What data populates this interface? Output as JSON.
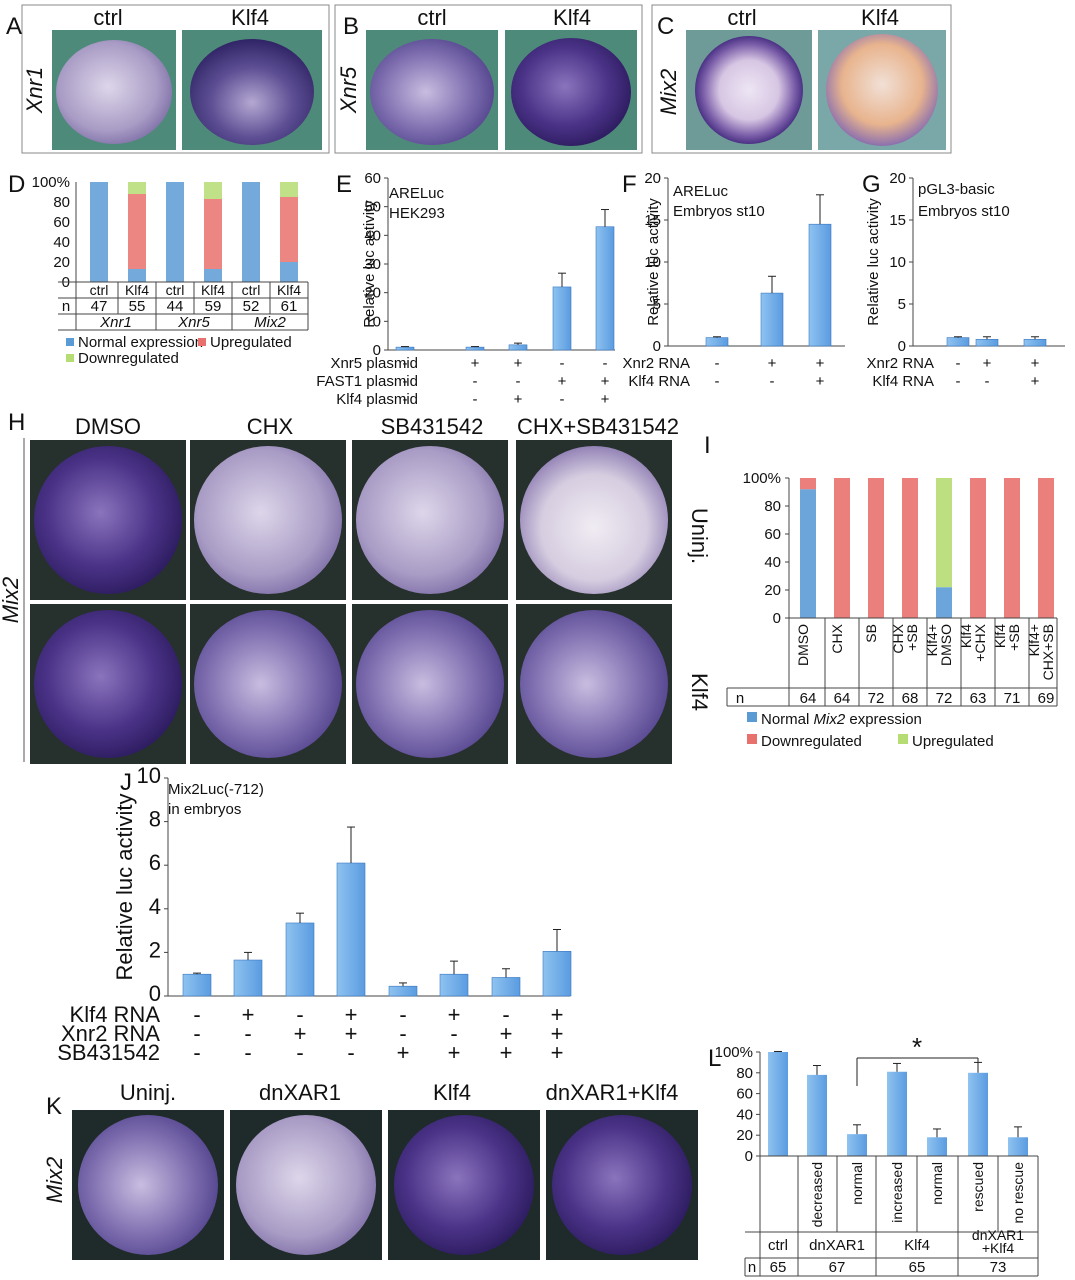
{
  "panels": {
    "A": {
      "letter": "A",
      "gene": "Xnr1",
      "ctrl": "ctrl",
      "klf": "Klf4"
    },
    "B": {
      "letter": "B",
      "gene": "Xnr5",
      "ctrl": "ctrl",
      "klf": "Klf4"
    },
    "C": {
      "letter": "C",
      "gene": "Mix2",
      "ctrl": "ctrl",
      "klf": "Klf4"
    },
    "D": {
      "letter": "D",
      "n_label": "n",
      "cols": [
        "ctrl",
        "Klf4",
        "ctrl",
        "Klf4",
        "ctrl",
        "Klf4"
      ],
      "ns": [
        "47",
        "55",
        "44",
        "59",
        "52",
        "61"
      ],
      "genes": [
        "Xnr1",
        "Xnr5",
        "Mix2"
      ],
      "legend": {
        "normal": "Normal expression",
        "up": "Upregulated",
        "down": "Downregulated"
      }
    },
    "E": {
      "letter": "E",
      "line1": "ARELuc",
      "line2": "HEK293",
      "rows": [
        {
          "name": "Xnr5 plasmid",
          "vals": [
            "-",
            "+",
            "+",
            "-",
            "-"
          ]
        },
        {
          "name": "FAST1 plasmid",
          "vals": [
            "-",
            "-",
            "-",
            "+",
            "+"
          ]
        },
        {
          "name": "Klf4 plasmid",
          "vals": [
            "-",
            "-",
            "+",
            "-",
            "+"
          ]
        }
      ]
    },
    "F": {
      "letter": "F",
      "line1": "ARELuc",
      "line2": "Embryos st10",
      "rows": [
        {
          "name": "Xnr2 RNA",
          "vals": [
            "-",
            "+",
            "+"
          ]
        },
        {
          "name": "Klf4 RNA",
          "vals": [
            "-",
            "-",
            "+"
          ]
        }
      ]
    },
    "G": {
      "letter": "G",
      "line1": "pGL3-basic",
      "line2": "Embryos st10",
      "rows": [
        {
          "name": "Xnr2 RNA",
          "vals": [
            "-",
            "+",
            "+"
          ]
        },
        {
          "name": "Klf4 RNA",
          "vals": [
            "-",
            "-",
            "+"
          ]
        }
      ]
    },
    "H": {
      "letter": "H",
      "gene": "Mix2",
      "cols": [
        "DMSO",
        "CHX",
        "SB431542",
        "CHX+SB431542"
      ]
    },
    "I": {
      "letter": "I",
      "uninj": "Uninj.",
      "klf": "Klf4",
      "n_label": "n",
      "ns": [
        "64",
        "64",
        "72",
        "68",
        "72",
        "63",
        "71",
        "69"
      ],
      "legend": {
        "normal": "Normal ",
        "gene": "Mix2",
        "expr": " expression",
        "down": "Downregulated",
        "up": "Upregulated"
      }
    },
    "J": {
      "letter": "J",
      "line1": "Mix2Luc(-712)",
      "line2": "in embryos",
      "rows": [
        {
          "name": "Klf4 RNA",
          "vals": [
            "-",
            "+",
            "-",
            "+",
            "-",
            "+",
            "-",
            "+"
          ]
        },
        {
          "name": "Xnr2 RNA",
          "vals": [
            "-",
            "-",
            "+",
            "+",
            "-",
            "-",
            "+",
            "+"
          ]
        },
        {
          "name": "SB431542",
          "vals": [
            "-",
            "-",
            "-",
            "-",
            "+",
            "+",
            "+",
            "+"
          ]
        }
      ]
    },
    "K": {
      "letter": "K",
      "gene": "Mix2",
      "cols": [
        "Uninj.",
        "dnXAR1",
        "Klf4",
        "dnXAR1+Klf4"
      ]
    },
    "L": {
      "letter": "L",
      "star": "*",
      "n_label": "n",
      "groups": [
        "ctrl",
        "dnXAR1",
        "Klf4",
        "dnXAR1\n+Klf4"
      ],
      "group_lines": [
        [
          "ctrl"
        ],
        [
          "dnXAR1"
        ],
        [
          "Klf4"
        ],
        [
          "dnXAR1",
          "+Klf4"
        ]
      ],
      "ns": [
        "65",
        "67",
        "65",
        "73"
      ]
    }
  },
  "chart_data": [
    {
      "panel": "D",
      "type": "bar",
      "stacked": true,
      "categories": [
        "Xnr1 ctrl",
        "Xnr1 Klf4",
        "Xnr5 ctrl",
        "Xnr5 Klf4",
        "Mix2 ctrl",
        "Mix2 Klf4"
      ],
      "series": [
        {
          "name": "Normal expression",
          "color": "#5b9bd5",
          "values": [
            100,
            13,
            100,
            13,
            100,
            20
          ]
        },
        {
          "name": "Upregulated",
          "color": "#e8716d",
          "values": [
            0,
            75,
            0,
            70,
            0,
            65
          ]
        },
        {
          "name": "Downregulated",
          "color": "#b6dc74",
          "values": [
            0,
            12,
            0,
            17,
            0,
            15
          ]
        }
      ],
      "ylim": [
        0,
        100
      ],
      "yticks": [
        "0",
        "20",
        "40",
        "60",
        "80",
        "100%"
      ]
    },
    {
      "panel": "E",
      "type": "bar",
      "ylabel": "Relative luc activity",
      "ylim": [
        0,
        60
      ],
      "yticks": [
        "0",
        "10",
        "20",
        "30",
        "40",
        "50",
        "60"
      ],
      "values": [
        1,
        1,
        1.8,
        22,
        43
      ],
      "errors": [
        0.2,
        0.2,
        0.6,
        4.8,
        6
      ]
    },
    {
      "panel": "F",
      "type": "bar",
      "ylabel": "Relative luc activity",
      "ylim": [
        0,
        20
      ],
      "yticks": [
        "0",
        "5",
        "10",
        "15",
        "20"
      ],
      "values": [
        1,
        6.3,
        14.5
      ],
      "errors": [
        0.1,
        2,
        3.5
      ]
    },
    {
      "panel": "G",
      "type": "bar",
      "ylabel": "Relative luc activity",
      "ylim": [
        0,
        20
      ],
      "yticks": [
        "0",
        "5",
        "10",
        "15",
        "20"
      ],
      "values": [
        1,
        0.8,
        0.8
      ],
      "errors": [
        0.1,
        0.3,
        0.3
      ]
    },
    {
      "panel": "I",
      "type": "bar",
      "stacked": true,
      "categories": [
        "DMSO",
        "CHX",
        "SB",
        "CHX +SB",
        "Klf4+ DMSO",
        "Klf4 +CHX",
        "Klf4 +SB",
        "Klf4+ CHX+SB"
      ],
      "series": [
        {
          "name": "Normal Mix2 expression",
          "color": "#5b9bd5",
          "values": [
            92,
            0,
            0,
            0,
            22,
            0,
            0,
            0
          ]
        },
        {
          "name": "Downregulated",
          "color": "#e8716d",
          "values": [
            8,
            100,
            100,
            100,
            0,
            100,
            100,
            100
          ]
        },
        {
          "name": "Upregulated",
          "color": "#b6dc74",
          "values": [
            0,
            0,
            0,
            0,
            78,
            0,
            0,
            0
          ]
        }
      ],
      "ylim": [
        0,
        100
      ],
      "yticks": [
        "0",
        "20",
        "40",
        "60",
        "80",
        "100%"
      ]
    },
    {
      "panel": "J",
      "type": "bar",
      "ylabel": "Relative luc activity",
      "ylim": [
        0,
        10
      ],
      "yticks": [
        "0",
        "2",
        "4",
        "6",
        "8",
        "10"
      ],
      "values": [
        1,
        1.65,
        3.35,
        6.1,
        0.45,
        1,
        0.85,
        2.05
      ],
      "errors": [
        0.05,
        0.35,
        0.45,
        1.65,
        0.15,
        0.6,
        0.4,
        1
      ]
    },
    {
      "panel": "L",
      "type": "bar",
      "categories": [
        "ctrl",
        "decreased",
        "normal",
        "increased",
        "normal",
        "rescued",
        "no rescue"
      ],
      "ylim": [
        0,
        100
      ],
      "yticks": [
        "0",
        "20",
        "40",
        "60",
        "80",
        "100%"
      ],
      "values": [
        100,
        78,
        21,
        81,
        18,
        80,
        18
      ],
      "errors": [
        0.5,
        9,
        9,
        8,
        8,
        10,
        10
      ]
    }
  ]
}
